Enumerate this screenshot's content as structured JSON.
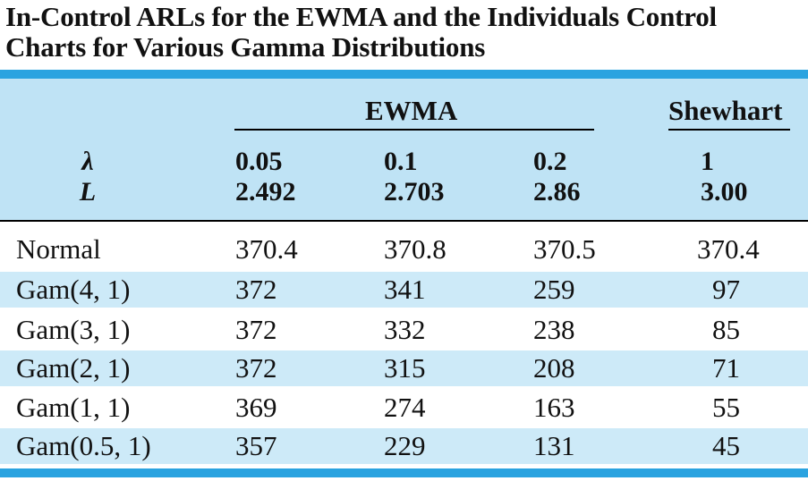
{
  "title": {
    "line1": "In-Control ARLs for the EWMA and the Individuals Control",
    "line2": "Charts for Various Gamma Distributions"
  },
  "colors": {
    "accent": "#2aa3e0",
    "header_bg": "#bfe3f5",
    "row_alt_bg": "#cdeaf8"
  },
  "table": {
    "groups": {
      "ewma": "EWMA",
      "shewhart": "Shewhart"
    },
    "lambda_symbol": "λ",
    "l_symbol": "L",
    "columns": [
      {
        "lambda": "0.05",
        "L": "2.492"
      },
      {
        "lambda": "0.1",
        "L": "2.703"
      },
      {
        "lambda": "0.2",
        "L": "2.86"
      },
      {
        "lambda": "1",
        "L": "3.00"
      }
    ],
    "rows": [
      {
        "label": "Normal",
        "values": [
          "370.4",
          "370.8",
          "370.5",
          "370.4"
        ]
      },
      {
        "label": "Gam(4, 1)",
        "values": [
          "372",
          "341",
          "259",
          "97"
        ]
      },
      {
        "label": "Gam(3, 1)",
        "values": [
          "372",
          "332",
          "238",
          "85"
        ]
      },
      {
        "label": "Gam(2, 1)",
        "values": [
          "372",
          "315",
          "208",
          "71"
        ]
      },
      {
        "label": "Gam(1, 1)",
        "values": [
          "369",
          "274",
          "163",
          "55"
        ]
      },
      {
        "label": "Gam(0.5, 1)",
        "values": [
          "357",
          "229",
          "131",
          "45"
        ]
      }
    ]
  }
}
